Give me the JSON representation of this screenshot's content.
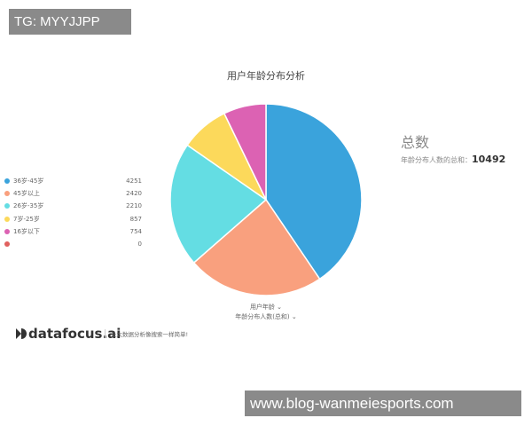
{
  "watermarks": {
    "top": "TG: MYYJJPP",
    "bottom": "www.blog-wanmeiesports.com"
  },
  "chart_data": {
    "type": "pie",
    "title": "用户年龄分布分析",
    "categories": [
      "36岁-45岁",
      "45岁以上",
      "26岁-35岁",
      "7岁-25岁",
      "16岁以下",
      ""
    ],
    "values": [
      4251,
      2420,
      2210,
      857,
      754,
      0
    ],
    "colors": [
      "#3aa3dc",
      "#f9a07e",
      "#64dde3",
      "#fcd95b",
      "#dc62b3",
      "#e0605e"
    ],
    "legend_position": "left"
  },
  "summary": {
    "title": "总数",
    "label": "年龄分布人数的总和：",
    "value": "10492"
  },
  "axis": {
    "dimension": "用户年龄",
    "measure": "年龄分布人数(总和)",
    "chevron": "⌄"
  },
  "brand": {
    "logo": "datafocus.ai",
    "slogan": "让大数据分析像搜索一样简单!"
  }
}
